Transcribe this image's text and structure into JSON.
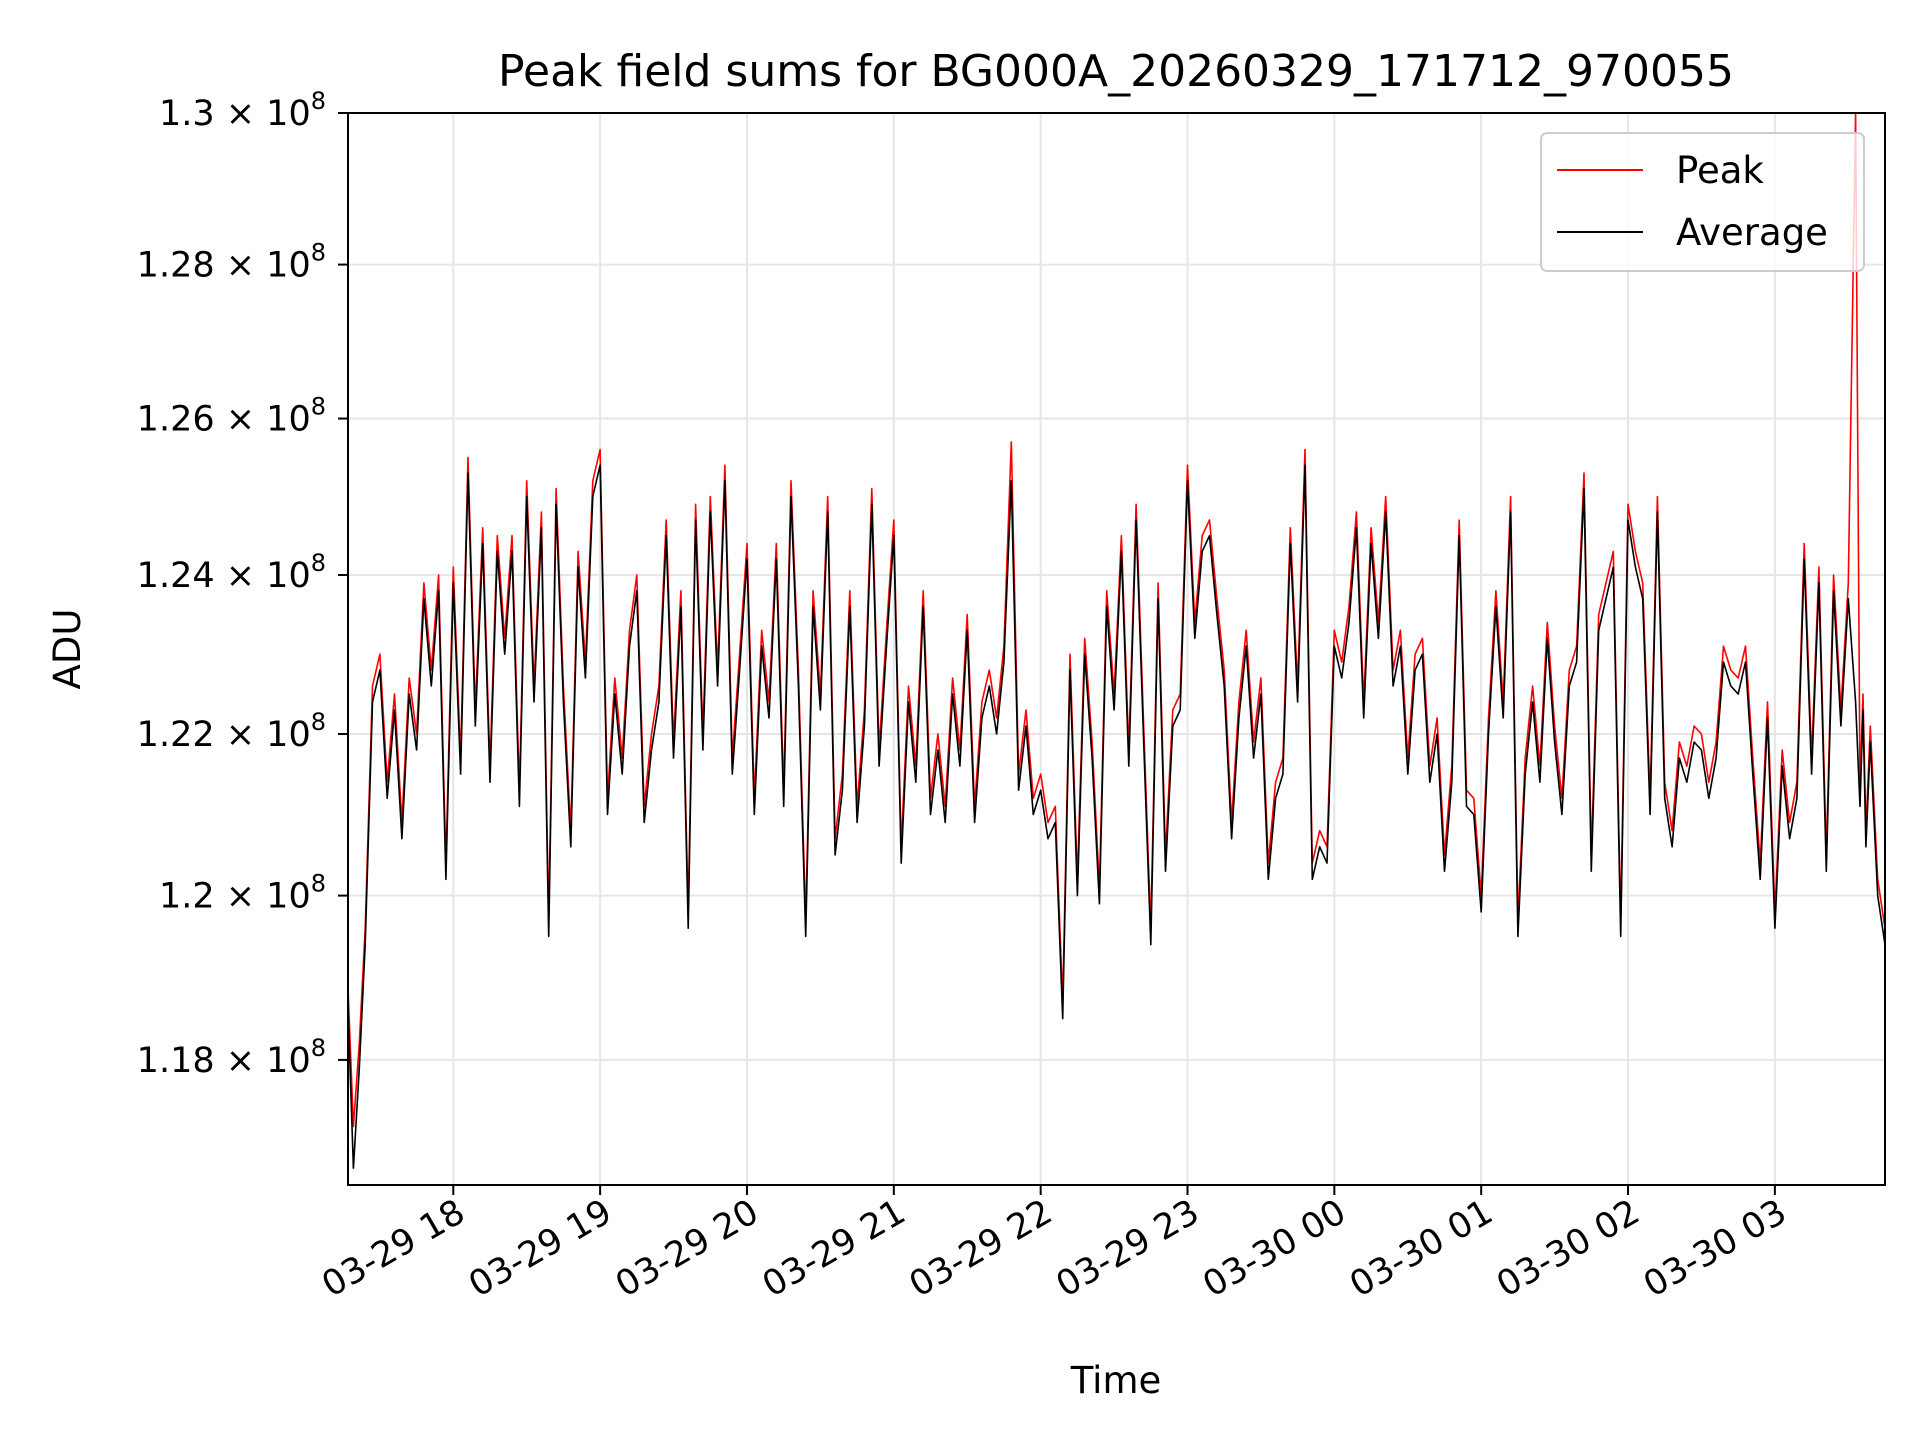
{
  "chart_data": {
    "type": "line",
    "title": "Peak field sums for BG000A_20260329_171712_970055",
    "xlabel": "Time",
    "ylabel": "ADU",
    "yscale": "log",
    "ylim": [
      116500000,
      130000000
    ],
    "xlim_hours": [
      17.283,
      27.75
    ],
    "grid": true,
    "legend_position": "top-right",
    "x_ticks": [
      {
        "hour": 18,
        "label": "03-29 18"
      },
      {
        "hour": 19,
        "label": "03-29 19"
      },
      {
        "hour": 20,
        "label": "03-29 20"
      },
      {
        "hour": 21,
        "label": "03-29 21"
      },
      {
        "hour": 22,
        "label": "03-29 22"
      },
      {
        "hour": 23,
        "label": "03-29 23"
      },
      {
        "hour": 24,
        "label": "03-30 00"
      },
      {
        "hour": 25,
        "label": "03-30 01"
      },
      {
        "hour": 26,
        "label": "03-30 02"
      },
      {
        "hour": 27,
        "label": "03-30 03"
      }
    ],
    "y_ticks": [
      {
        "value": 118000000,
        "mantissa": "1.18",
        "exp": "8"
      },
      {
        "value": 120000000,
        "mantissa": "1.2",
        "exp": "8"
      },
      {
        "value": 122000000,
        "mantissa": "1.22",
        "exp": "8"
      },
      {
        "value": 124000000,
        "mantissa": "1.24",
        "exp": "8"
      },
      {
        "value": 126000000,
        "mantissa": "1.26",
        "exp": "8"
      },
      {
        "value": 128000000,
        "mantissa": "1.28",
        "exp": "8"
      },
      {
        "value": 130000000,
        "mantissa": "1.3",
        "exp": "8"
      }
    ],
    "times_symbol": "×",
    "tick_base": "10",
    "series": [
      {
        "name": "Peak",
        "color": "#ff0000",
        "hours": [
          17.28,
          17.32,
          17.36,
          17.4,
          17.45,
          17.5,
          17.55,
          17.6,
          17.65,
          17.7,
          17.75,
          17.8,
          17.85,
          17.9,
          17.95,
          18.0,
          18.05,
          18.1,
          18.15,
          18.2,
          18.25,
          18.3,
          18.35,
          18.4,
          18.45,
          18.5,
          18.55,
          18.6,
          18.65,
          18.7,
          18.75,
          18.8,
          18.85,
          18.9,
          18.95,
          19.0,
          19.05,
          19.1,
          19.15,
          19.2,
          19.25,
          19.3,
          19.35,
          19.4,
          19.45,
          19.5,
          19.55,
          19.6,
          19.65,
          19.7,
          19.75,
          19.8,
          19.85,
          19.9,
          19.95,
          20.0,
          20.05,
          20.1,
          20.15,
          20.2,
          20.25,
          20.3,
          20.35,
          20.4,
          20.45,
          20.5,
          20.55,
          20.6,
          20.65,
          20.7,
          20.75,
          20.8,
          20.85,
          20.9,
          20.95,
          21.0,
          21.05,
          21.1,
          21.15,
          21.2,
          21.25,
          21.3,
          21.35,
          21.4,
          21.45,
          21.5,
          21.55,
          21.6,
          21.65,
          21.7,
          21.75,
          21.8,
          21.85,
          21.9,
          21.95,
          22.0,
          22.05,
          22.1,
          22.15,
          22.2,
          22.25,
          22.3,
          22.35,
          22.4,
          22.45,
          22.5,
          22.55,
          22.6,
          22.65,
          22.7,
          22.75,
          22.8,
          22.85,
          22.9,
          22.95,
          23.0,
          23.05,
          23.1,
          23.15,
          23.2,
          23.25,
          23.3,
          23.35,
          23.4,
          23.45,
          23.5,
          23.55,
          23.6,
          23.65,
          23.7,
          23.75,
          23.8,
          23.85,
          23.9,
          23.95,
          24.0,
          24.05,
          24.1,
          24.15,
          24.2,
          24.25,
          24.3,
          24.35,
          24.4,
          24.45,
          24.5,
          24.55,
          24.6,
          24.65,
          24.7,
          24.75,
          24.8,
          24.85,
          24.9,
          24.95,
          25.0,
          25.05,
          25.1,
          25.15,
          25.2,
          25.25,
          25.3,
          25.35,
          25.4,
          25.45,
          25.5,
          25.55,
          25.6,
          25.65,
          25.7,
          25.75,
          25.8,
          25.85,
          25.9,
          25.95,
          26.0,
          26.05,
          26.1,
          26.15,
          26.2,
          26.25,
          26.3,
          26.35,
          26.4,
          26.45,
          26.5,
          26.55,
          26.6,
          26.65,
          26.7,
          26.75,
          26.8,
          26.85,
          26.9,
          26.95,
          27.0,
          27.05,
          27.1,
          27.15,
          27.2,
          27.25,
          27.3,
          27.35,
          27.4,
          27.45,
          27.5,
          27.55,
          27.58,
          27.6,
          27.62,
          27.65,
          27.7,
          27.75
        ],
        "values": [
          119000000,
          117200000,
          118200000,
          119600000,
          122600000,
          123000000,
          121400000,
          122500000,
          120900000,
          122700000,
          122000000,
          123900000,
          122800000,
          124000000,
          120400000,
          124100000,
          121700000,
          125500000,
          122300000,
          124600000,
          121600000,
          124500000,
          123200000,
          124500000,
          121300000,
          125200000,
          122600000,
          124800000,
          119700000,
          125100000,
          122600000,
          120800000,
          124300000,
          122900000,
          125200000,
          125600000,
          121200000,
          122700000,
          121700000,
          123300000,
          124000000,
          121100000,
          122000000,
          122600000,
          124700000,
          121900000,
          123800000,
          119800000,
          124900000,
          122000000,
          125000000,
          122800000,
          125400000,
          121700000,
          123000000,
          124400000,
          121200000,
          123300000,
          122400000,
          124400000,
          121300000,
          125200000,
          122800000,
          119700000,
          123800000,
          122500000,
          125000000,
          120700000,
          121500000,
          123800000,
          121100000,
          122300000,
          125100000,
          121800000,
          123300000,
          124700000,
          120600000,
          122600000,
          121600000,
          123800000,
          121200000,
          122000000,
          121100000,
          122700000,
          121800000,
          123500000,
          121100000,
          122400000,
          122800000,
          122200000,
          123100000,
          125700000,
          121500000,
          122300000,
          121200000,
          121500000,
          120900000,
          121100000,
          118700000,
          123000000,
          120200000,
          123200000,
          121900000,
          120100000,
          123800000,
          122500000,
          124500000,
          121800000,
          124900000,
          122200000,
          119600000,
          123900000,
          120500000,
          122300000,
          122500000,
          125400000,
          123400000,
          124500000,
          124700000,
          123700000,
          122800000,
          120900000,
          122400000,
          123300000,
          121900000,
          122700000,
          120400000,
          121400000,
          121700000,
          124600000,
          122600000,
          125600000,
          120400000,
          120800000,
          120600000,
          123300000,
          122900000,
          123600000,
          124800000,
          122400000,
          124600000,
          123400000,
          125000000,
          122800000,
          123300000,
          121700000,
          123000000,
          123200000,
          121600000,
          122200000,
          120500000,
          121600000,
          124700000,
          121300000,
          121200000,
          120000000,
          122200000,
          123800000,
          122400000,
          125000000,
          119700000,
          121700000,
          122600000,
          121600000,
          123400000,
          122100000,
          121200000,
          122800000,
          123100000,
          125300000,
          120500000,
          123500000,
          123900000,
          124300000,
          119700000,
          124900000,
          124300000,
          123900000,
          121200000,
          125000000,
          121400000,
          120800000,
          121900000,
          121600000,
          122100000,
          122000000,
          121400000,
          121900000,
          123100000,
          122800000,
          122700000,
          123100000,
          121700000,
          120400000,
          122400000,
          119800000,
          121800000,
          120900000,
          121400000,
          124400000,
          121700000,
          124100000,
          120500000,
          124000000,
          122300000,
          123900000,
          130000000,
          121300000,
          122500000,
          120800000,
          122100000,
          120200000,
          119600000
        ]
      },
      {
        "name": "Average",
        "color": "#000000",
        "hours": [
          17.28,
          17.32,
          17.36,
          17.4,
          17.45,
          17.5,
          17.55,
          17.6,
          17.65,
          17.7,
          17.75,
          17.8,
          17.85,
          17.9,
          17.95,
          18.0,
          18.05,
          18.1,
          18.15,
          18.2,
          18.25,
          18.3,
          18.35,
          18.4,
          18.45,
          18.5,
          18.55,
          18.6,
          18.65,
          18.7,
          18.75,
          18.8,
          18.85,
          18.9,
          18.95,
          19.0,
          19.05,
          19.1,
          19.15,
          19.2,
          19.25,
          19.3,
          19.35,
          19.4,
          19.45,
          19.5,
          19.55,
          19.6,
          19.65,
          19.7,
          19.75,
          19.8,
          19.85,
          19.9,
          19.95,
          20.0,
          20.05,
          20.1,
          20.15,
          20.2,
          20.25,
          20.3,
          20.35,
          20.4,
          20.45,
          20.5,
          20.55,
          20.6,
          20.65,
          20.7,
          20.75,
          20.8,
          20.85,
          20.9,
          20.95,
          21.0,
          21.05,
          21.1,
          21.15,
          21.2,
          21.25,
          21.3,
          21.35,
          21.4,
          21.45,
          21.5,
          21.55,
          21.6,
          21.65,
          21.7,
          21.75,
          21.8,
          21.85,
          21.9,
          21.95,
          22.0,
          22.05,
          22.1,
          22.15,
          22.2,
          22.25,
          22.3,
          22.35,
          22.4,
          22.45,
          22.5,
          22.55,
          22.6,
          22.65,
          22.7,
          22.75,
          22.8,
          22.85,
          22.9,
          22.95,
          23.0,
          23.05,
          23.1,
          23.15,
          23.2,
          23.25,
          23.3,
          23.35,
          23.4,
          23.45,
          23.5,
          23.55,
          23.6,
          23.65,
          23.7,
          23.75,
          23.8,
          23.85,
          23.9,
          23.95,
          24.0,
          24.05,
          24.1,
          24.15,
          24.2,
          24.25,
          24.3,
          24.35,
          24.4,
          24.45,
          24.5,
          24.55,
          24.6,
          24.65,
          24.7,
          24.75,
          24.8,
          24.85,
          24.9,
          24.95,
          25.0,
          25.05,
          25.1,
          25.15,
          25.2,
          25.25,
          25.3,
          25.35,
          25.4,
          25.45,
          25.5,
          25.55,
          25.6,
          25.65,
          25.7,
          25.75,
          25.8,
          25.85,
          25.9,
          25.95,
          26.0,
          26.05,
          26.1,
          26.15,
          26.2,
          26.25,
          26.3,
          26.35,
          26.4,
          26.45,
          26.5,
          26.55,
          26.6,
          26.65,
          26.7,
          26.75,
          26.8,
          26.85,
          26.9,
          26.95,
          27.0,
          27.05,
          27.1,
          27.15,
          27.2,
          27.25,
          27.3,
          27.35,
          27.4,
          27.45,
          27.5,
          27.55,
          27.58,
          27.6,
          27.62,
          27.65,
          27.7,
          27.75
        ],
        "values": [
          118800000,
          116700000,
          117900000,
          119400000,
          122400000,
          122800000,
          121200000,
          122300000,
          120700000,
          122500000,
          121800000,
          123700000,
          122600000,
          123800000,
          120200000,
          123900000,
          121500000,
          125300000,
          122100000,
          124400000,
          121400000,
          124300000,
          123000000,
          124300000,
          121100000,
          125000000,
          122400000,
          124600000,
          119500000,
          124900000,
          122400000,
          120600000,
          124100000,
          122700000,
          125000000,
          125400000,
          121000000,
          122500000,
          121500000,
          123100000,
          123800000,
          120900000,
          121800000,
          122400000,
          124500000,
          121700000,
          123600000,
          119600000,
          124700000,
          121800000,
          124800000,
          122600000,
          125200000,
          121500000,
          122800000,
          124200000,
          121000000,
          123100000,
          122200000,
          124200000,
          121100000,
          125000000,
          122600000,
          119500000,
          123600000,
          122300000,
          124800000,
          120500000,
          121300000,
          123600000,
          120900000,
          122100000,
          124900000,
          121600000,
          123100000,
          124500000,
          120400000,
          122400000,
          121400000,
          123600000,
          121000000,
          121800000,
          120900000,
          122500000,
          121600000,
          123300000,
          120900000,
          122200000,
          122600000,
          122000000,
          122900000,
          125200000,
          121300000,
          122100000,
          121000000,
          121300000,
          120700000,
          120900000,
          118500000,
          122800000,
          120000000,
          123000000,
          121700000,
          119900000,
          123600000,
          122300000,
          124300000,
          121600000,
          124700000,
          122000000,
          119400000,
          123700000,
          120300000,
          122100000,
          122300000,
          125200000,
          123200000,
          124300000,
          124500000,
          123500000,
          122600000,
          120700000,
          122200000,
          123100000,
          121700000,
          122500000,
          120200000,
          121200000,
          121500000,
          124400000,
          122400000,
          125400000,
          120200000,
          120600000,
          120400000,
          123100000,
          122700000,
          123400000,
          124600000,
          122200000,
          124400000,
          123200000,
          124800000,
          122600000,
          123100000,
          121500000,
          122800000,
          123000000,
          121400000,
          122000000,
          120300000,
          121400000,
          124500000,
          121100000,
          121000000,
          119800000,
          122000000,
          123600000,
          122200000,
          124800000,
          119500000,
          121500000,
          122400000,
          121400000,
          123200000,
          121900000,
          121000000,
          122600000,
          122900000,
          125100000,
          120300000,
          123300000,
          123700000,
          124100000,
          119500000,
          124700000,
          124100000,
          123700000,
          121000000,
          124800000,
          121200000,
          120600000,
          121700000,
          121400000,
          121900000,
          121800000,
          121200000,
          121700000,
          122900000,
          122600000,
          122500000,
          122900000,
          121500000,
          120200000,
          122200000,
          119600000,
          121600000,
          120700000,
          121200000,
          124200000,
          121500000,
          123900000,
          120300000,
          123800000,
          122100000,
          123700000,
          122400000,
          121100000,
          122300000,
          120600000,
          121900000,
          120000000,
          119400000
        ]
      }
    ]
  }
}
